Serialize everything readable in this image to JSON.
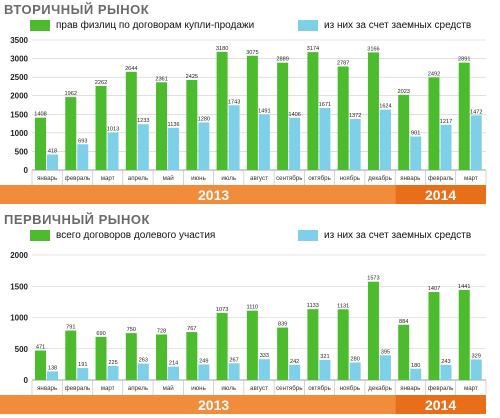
{
  "colors": {
    "primary": "#4cbb2e",
    "secondary": "#7ecfe8",
    "year_band": "#f08c3a",
    "year_band_dark": "#e86f1a",
    "grid": "#cccccc",
    "title": "#6a6a6a"
  },
  "chart_data": [
    {
      "type": "bar",
      "title": "ВТОРИЧНЫЙ РЫНОК",
      "categories": [
        "январь",
        "февраль",
        "март",
        "апрель",
        "май",
        "июнь",
        "июль",
        "август",
        "сентябрь",
        "октябрь",
        "ноябрь",
        "декабрь",
        "январь",
        "февраль",
        "март"
      ],
      "series": [
        {
          "name": "прав физлиц по договорам купли-продажи",
          "color": "#4cbb2e",
          "values": [
            1408,
            1962,
            2262,
            2644,
            2361,
            2425,
            3180,
            3075,
            2889,
            3174,
            2787,
            3166,
            2023,
            2492,
            2891
          ]
        },
        {
          "name": "из них за счет заемных средств",
          "color": "#7ecfe8",
          "values": [
            418,
            693,
            1013,
            1233,
            1136,
            1280,
            1743,
            1491,
            1406,
            1671,
            1372,
            1624,
            901,
            1217,
            1472
          ]
        }
      ],
      "ylim": [
        0,
        3500
      ],
      "yticks": [
        "0",
        "500",
        "1000",
        "1500",
        "2000",
        "2500",
        "3000",
        "3500"
      ],
      "years": [
        {
          "label": "2013",
          "months": 12
        },
        {
          "label": "2014",
          "months": 3
        }
      ],
      "grid": true,
      "legend": "top"
    },
    {
      "type": "bar",
      "title": "ПЕРВИЧНЫЙ РЫНОК",
      "categories": [
        "январь",
        "февраль",
        "март",
        "апрель",
        "май",
        "июнь",
        "июль",
        "август",
        "сентябрь",
        "октябрь",
        "ноябрь",
        "декабрь",
        "январь",
        "февраль",
        "март"
      ],
      "series": [
        {
          "name": "всего договоров долевого участия",
          "color": "#4cbb2e",
          "values": [
            471,
            791,
            690,
            750,
            728,
            767,
            1073,
            1110,
            839,
            1133,
            1131,
            1573,
            884,
            1407,
            1441
          ]
        },
        {
          "name": "из них за счет заемных средств",
          "color": "#7ecfe8",
          "values": [
            138,
            191,
            225,
            263,
            214,
            249,
            267,
            333,
            242,
            321,
            280,
            395,
            180,
            243,
            329
          ]
        }
      ],
      "ylim": [
        0,
        2000
      ],
      "yticks": [
        "0",
        "500",
        "1000",
        "1500",
        "2000"
      ],
      "years": [
        {
          "label": "2013",
          "months": 12
        },
        {
          "label": "2014",
          "months": 3
        }
      ],
      "grid": true,
      "legend": "top"
    }
  ]
}
